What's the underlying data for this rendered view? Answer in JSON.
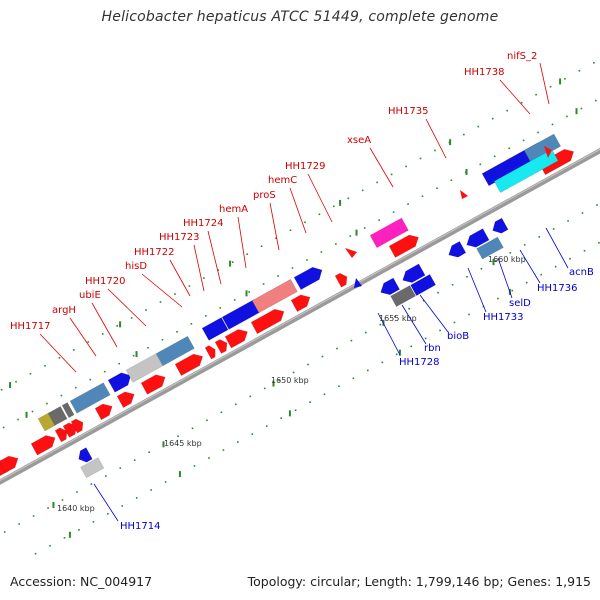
{
  "title": "Helicobacter hepaticus ATCC 51449, complete genome",
  "footer": {
    "accession": "Accession: NC_004917",
    "summary": "Topology: circular; Length: 1,799,146 bp; Genes: 1,915"
  },
  "colors": {
    "top_label": "#cc0000",
    "bottom_label": "#0000cc",
    "backbone": "#8c8c8c",
    "tick_dot": "#2a8a2a"
  },
  "ticks": [
    "1640 kbp",
    "1645 kbp",
    "1650 kbp",
    "1655 kbp",
    "1660 kbp"
  ],
  "top_labels": [
    "HH1717",
    "argH",
    "ubiE",
    "HH1720",
    "hisD",
    "HH1722",
    "HH1723",
    "HH1724",
    "hemA",
    "proS",
    "hemC",
    "HH1729",
    "xseA",
    "HH1735",
    "HH1738",
    "nifS_2"
  ],
  "bottom_labels": [
    "HH1714",
    "HH1728",
    "rbn",
    "bioB",
    "HH1733",
    "selD",
    "HH1736",
    "acnB"
  ]
}
